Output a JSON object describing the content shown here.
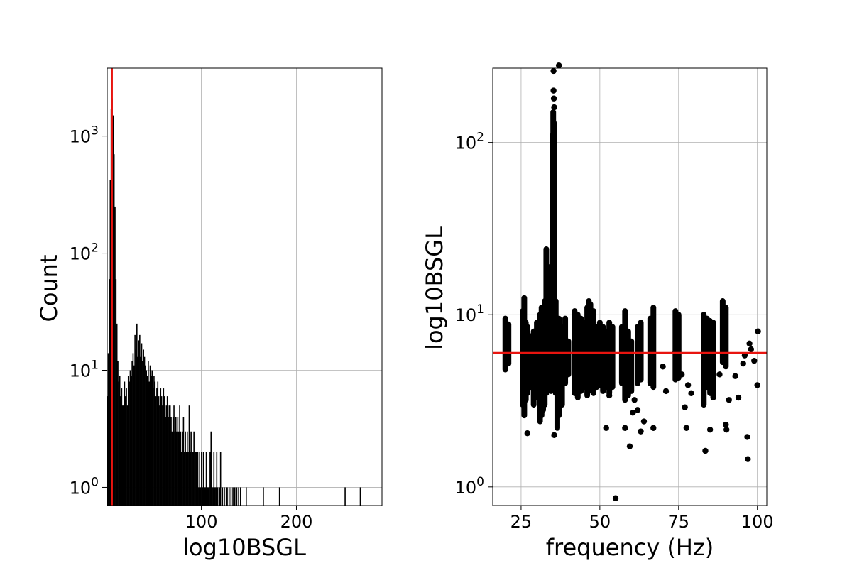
{
  "chart_data": [
    {
      "type": "bar",
      "xlabel": "log10BSGL",
      "ylabel": "Count",
      "xlim": [
        1,
        290
      ],
      "ylim": [
        0.7,
        3800
      ],
      "y_scale": "log",
      "grid": true,
      "x_ticks": [
        {
          "value": 100,
          "label": "100"
        },
        {
          "value": 200,
          "label": "200"
        }
      ],
      "y_ticks": [
        {
          "value": 1,
          "base": "10",
          "exp": "0"
        },
        {
          "value": 10,
          "base": "10",
          "exp": "1"
        },
        {
          "value": 100,
          "base": "10",
          "exp": "2"
        },
        {
          "value": 1000,
          "base": "10",
          "exp": "3"
        }
      ],
      "threshold_x": 6,
      "threshold_color": "#e8140f",
      "bar_color": "#000000",
      "bins": [
        [
          1,
          6
        ],
        [
          2,
          14
        ],
        [
          3,
          60
        ],
        [
          4,
          420
        ],
        [
          5,
          1700
        ],
        [
          6,
          2100
        ],
        [
          7,
          1500
        ],
        [
          8,
          700
        ],
        [
          9,
          250
        ],
        [
          10,
          60
        ],
        [
          11,
          25
        ],
        [
          12,
          12
        ],
        [
          13,
          8
        ],
        [
          14,
          9
        ],
        [
          15,
          6
        ],
        [
          16,
          7
        ],
        [
          17,
          5
        ],
        [
          18,
          5
        ],
        [
          19,
          8
        ],
        [
          20,
          6
        ],
        [
          21,
          7
        ],
        [
          22,
          5
        ],
        [
          23,
          9
        ],
        [
          24,
          8
        ],
        [
          25,
          10
        ],
        [
          26,
          9
        ],
        [
          27,
          12
        ],
        [
          28,
          14
        ],
        [
          29,
          11
        ],
        [
          30,
          20
        ],
        [
          31,
          15
        ],
        [
          32,
          25
        ],
        [
          33,
          13
        ],
        [
          34,
          18
        ],
        [
          35,
          20
        ],
        [
          36,
          13
        ],
        [
          37,
          17
        ],
        [
          38,
          12
        ],
        [
          39,
          15
        ],
        [
          40,
          13
        ],
        [
          41,
          11
        ],
        [
          42,
          10
        ],
        [
          43,
          9
        ],
        [
          44,
          12
        ],
        [
          45,
          8
        ],
        [
          46,
          11
        ],
        [
          47,
          9
        ],
        [
          48,
          10
        ],
        [
          49,
          7
        ],
        [
          50,
          9
        ],
        [
          51,
          8
        ],
        [
          52,
          6
        ],
        [
          53,
          7
        ],
        [
          54,
          8
        ],
        [
          55,
          6
        ],
        [
          56,
          5
        ],
        [
          57,
          7
        ],
        [
          58,
          6
        ],
        [
          59,
          5
        ],
        [
          60,
          7
        ],
        [
          61,
          6
        ],
        [
          62,
          4
        ],
        [
          63,
          5
        ],
        [
          64,
          6
        ],
        [
          65,
          4
        ],
        [
          66,
          5
        ],
        [
          67,
          5
        ],
        [
          68,
          4
        ],
        [
          69,
          3
        ],
        [
          70,
          4
        ],
        [
          71,
          5
        ],
        [
          72,
          3
        ],
        [
          73,
          4
        ],
        [
          74,
          3
        ],
        [
          75,
          4
        ],
        [
          76,
          3
        ],
        [
          77,
          5
        ],
        [
          78,
          3
        ],
        [
          79,
          2
        ],
        [
          80,
          3
        ],
        [
          81,
          4
        ],
        [
          82,
          2
        ],
        [
          83,
          3
        ],
        [
          84,
          2
        ],
        [
          85,
          3
        ],
        [
          86,
          2
        ],
        [
          87,
          5
        ],
        [
          88,
          2
        ],
        [
          89,
          3
        ],
        [
          90,
          2
        ],
        [
          91,
          2
        ],
        [
          92,
          3
        ],
        [
          93,
          2
        ],
        [
          94,
          2
        ],
        [
          95,
          2
        ],
        [
          96,
          2
        ],
        [
          97,
          1
        ],
        [
          98,
          2
        ],
        [
          99,
          1
        ],
        [
          100,
          2
        ],
        [
          101,
          1
        ],
        [
          102,
          2
        ],
        [
          103,
          1
        ],
        [
          104,
          1
        ],
        [
          105,
          2
        ],
        [
          106,
          1
        ],
        [
          107,
          1
        ],
        [
          108,
          1
        ],
        [
          109,
          2
        ],
        [
          110,
          3
        ],
        [
          111,
          1
        ],
        [
          112,
          1
        ],
        [
          113,
          2
        ],
        [
          114,
          1
        ],
        [
          115,
          1
        ],
        [
          116,
          2
        ],
        [
          117,
          1
        ],
        [
          119,
          1
        ],
        [
          120,
          2
        ],
        [
          122,
          1
        ],
        [
          124,
          1
        ],
        [
          126,
          1
        ],
        [
          127,
          1
        ],
        [
          129,
          1
        ],
        [
          131,
          1
        ],
        [
          133,
          1
        ],
        [
          135,
          1
        ],
        [
          137,
          1
        ],
        [
          139,
          1
        ],
        [
          141,
          1
        ],
        [
          147,
          1
        ],
        [
          165,
          1
        ],
        [
          182,
          1
        ],
        [
          251,
          1
        ],
        [
          267,
          1
        ]
      ]
    },
    {
      "type": "scatter",
      "xlabel": "frequency (Hz)",
      "ylabel": "log10BSGL",
      "xlim": [
        16,
        103
      ],
      "ylim": [
        0.78,
        270
      ],
      "y_scale": "log",
      "grid": true,
      "x_ticks": [
        {
          "value": 25,
          "label": "25"
        },
        {
          "value": 50,
          "label": "50"
        },
        {
          "value": 75,
          "label": "75"
        },
        {
          "value": 100,
          "label": "100"
        }
      ],
      "y_ticks": [
        {
          "value": 1,
          "base": "10",
          "exp": "0"
        },
        {
          "value": 10,
          "base": "10",
          "exp": "1"
        },
        {
          "value": 100,
          "base": "10",
          "exp": "2"
        }
      ],
      "threshold_y": 6,
      "threshold_color": "#e8140f",
      "point_color": "#000000",
      "columns": [
        [
          20,
          4.8,
          9.5
        ],
        [
          21,
          5.2,
          8.8
        ],
        [
          25.5,
          3.0,
          10.5
        ],
        [
          26,
          2.6,
          12.5
        ],
        [
          26.5,
          3.2,
          9.0
        ],
        [
          27,
          3.5,
          8.5
        ],
        [
          28,
          3.8,
          7.5
        ],
        [
          29,
          3.0,
          8.0
        ],
        [
          30,
          3.3,
          9.0
        ],
        [
          31,
          2.4,
          10.0
        ],
        [
          31.5,
          2.6,
          11.0
        ],
        [
          32,
          2.8,
          10.5
        ],
        [
          32.5,
          3.0,
          12.0
        ],
        [
          33,
          3.5,
          24.0
        ],
        [
          33.5,
          3.8,
          19.0
        ],
        [
          34,
          4.0,
          14.0
        ],
        [
          34.5,
          3.6,
          10.5
        ],
        [
          35,
          3.8,
          110
        ],
        [
          35.2,
          4.0,
          150
        ],
        [
          35.4,
          4.2,
          130
        ],
        [
          35.6,
          4.5,
          120
        ],
        [
          36,
          3.5,
          12.0
        ],
        [
          36.5,
          2.2,
          9.0
        ],
        [
          37,
          2.6,
          9.5
        ],
        [
          38,
          3.0,
          8.5
        ],
        [
          39,
          4.0,
          9.5
        ],
        [
          40,
          4.5,
          7.0
        ],
        [
          42,
          3.5,
          10.5
        ],
        [
          43,
          3.3,
          10.0
        ],
        [
          44,
          3.6,
          9.5
        ],
        [
          45,
          3.8,
          9.0
        ],
        [
          46,
          3.4,
          11.0
        ],
        [
          46.5,
          3.6,
          12.0
        ],
        [
          47,
          3.7,
          11.5
        ],
        [
          48,
          3.5,
          10.5
        ],
        [
          49,
          3.8,
          8.5
        ],
        [
          50,
          3.9,
          9.0
        ],
        [
          51,
          3.6,
          8.5
        ],
        [
          52,
          3.8,
          8.0
        ],
        [
          53,
          3.5,
          9.0
        ],
        [
          54,
          3.8,
          8.5
        ],
        [
          57,
          4.0,
          8.5
        ],
        [
          58,
          3.2,
          10.5
        ],
        [
          59,
          3.4,
          8.0
        ],
        [
          60,
          3.6,
          7.0
        ],
        [
          62,
          4.0,
          8.5
        ],
        [
          63,
          4.2,
          9.0
        ],
        [
          66,
          4.0,
          9.5
        ],
        [
          67,
          3.8,
          11.0
        ],
        [
          74,
          4.2,
          10.5
        ],
        [
          75,
          4.3,
          10.0
        ],
        [
          83,
          3.0,
          10.0
        ],
        [
          84,
          3.8,
          9.5
        ],
        [
          85,
          3.5,
          9.2
        ],
        [
          86,
          3.3,
          9.0
        ],
        [
          89,
          5.3,
          12.0
        ],
        [
          90,
          5.0,
          11.0
        ]
      ],
      "points": [
        [
          37,
          280
        ],
        [
          35.3,
          260
        ],
        [
          35.4,
          180
        ],
        [
          35.5,
          160
        ],
        [
          35.3,
          200
        ],
        [
          35.5,
          2.0
        ],
        [
          27,
          2.05
        ],
        [
          55,
          0.86
        ],
        [
          59.5,
          1.72
        ],
        [
          83.5,
          1.62
        ],
        [
          97,
          1.45
        ],
        [
          96.8,
          1.95
        ],
        [
          100,
          3.9
        ],
        [
          100.2,
          8.0
        ],
        [
          98,
          6.3
        ],
        [
          97.5,
          6.8
        ],
        [
          96,
          5.8
        ],
        [
          95.5,
          5.2
        ],
        [
          94,
          3.3
        ],
        [
          91,
          3.2
        ],
        [
          90,
          2.3
        ],
        [
          90.2,
          2.15
        ],
        [
          85,
          2.15
        ],
        [
          78,
          3.9
        ],
        [
          79,
          3.5
        ],
        [
          77,
          2.9
        ],
        [
          77.5,
          2.2
        ],
        [
          74,
          6.1
        ],
        [
          70,
          5.0
        ],
        [
          71,
          3.6
        ],
        [
          67,
          2.2
        ],
        [
          64,
          2.4
        ],
        [
          63,
          2.1
        ],
        [
          58,
          2.2
        ],
        [
          52,
          2.2
        ],
        [
          53,
          3.4
        ],
        [
          61,
          3.2
        ],
        [
          62,
          2.8
        ],
        [
          60.5,
          2.7
        ],
        [
          76,
          4.5
        ],
        [
          93,
          4.4
        ],
        [
          88,
          4.5
        ],
        [
          99,
          5.4
        ]
      ]
    }
  ]
}
